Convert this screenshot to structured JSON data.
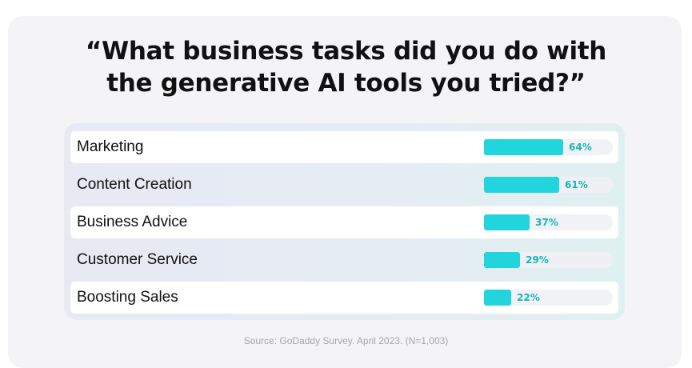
{
  "title_lines": [
    "“What business tasks did you do with",
    "the generative AI tools you tried?”"
  ],
  "source": "Source: GoDaddy Survey. April 2023. (N=1,003)",
  "colors": {
    "bar": "#22d5dc",
    "value_text": "#16b6bd"
  },
  "chart_data": {
    "type": "bar",
    "orientation": "horizontal",
    "title": "“What business tasks did you do with the generative AI tools you tried?”",
    "categories": [
      "Marketing",
      "Content Creation",
      "Business Advice",
      "Customer Service",
      "Boosting Sales"
    ],
    "values": [
      64,
      61,
      37,
      29,
      22
    ],
    "value_labels": [
      "64%",
      "61%",
      "37%",
      "29%",
      "22%"
    ],
    "unit": "%",
    "xlim": [
      0,
      100
    ],
    "grid": false,
    "legend": "none"
  }
}
